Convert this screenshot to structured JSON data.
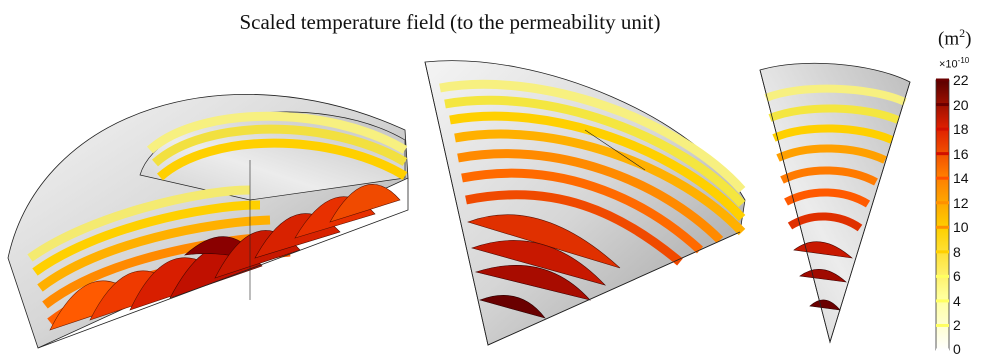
{
  "title": "Scaled temperature field (to the permeability unit)",
  "unit": {
    "base": "(m",
    "power": "2",
    "close": ")"
  },
  "exponent": {
    "prefix": "×10",
    "power": "-10"
  },
  "colorbar": {
    "ticks": [
      "22",
      "20",
      "18",
      "16",
      "14",
      "12",
      "10",
      "8",
      "6",
      "4",
      "2",
      "0"
    ],
    "range": [
      0,
      22
    ],
    "colors": {
      "high": "#5a0000",
      "mid": "#ff5a00",
      "low": "#ffff80",
      "zero": "#ffffff"
    }
  },
  "colors": {
    "shell": "#d8d8d8",
    "shell_dark": "#a6a6a6",
    "edge": "#111111"
  }
}
